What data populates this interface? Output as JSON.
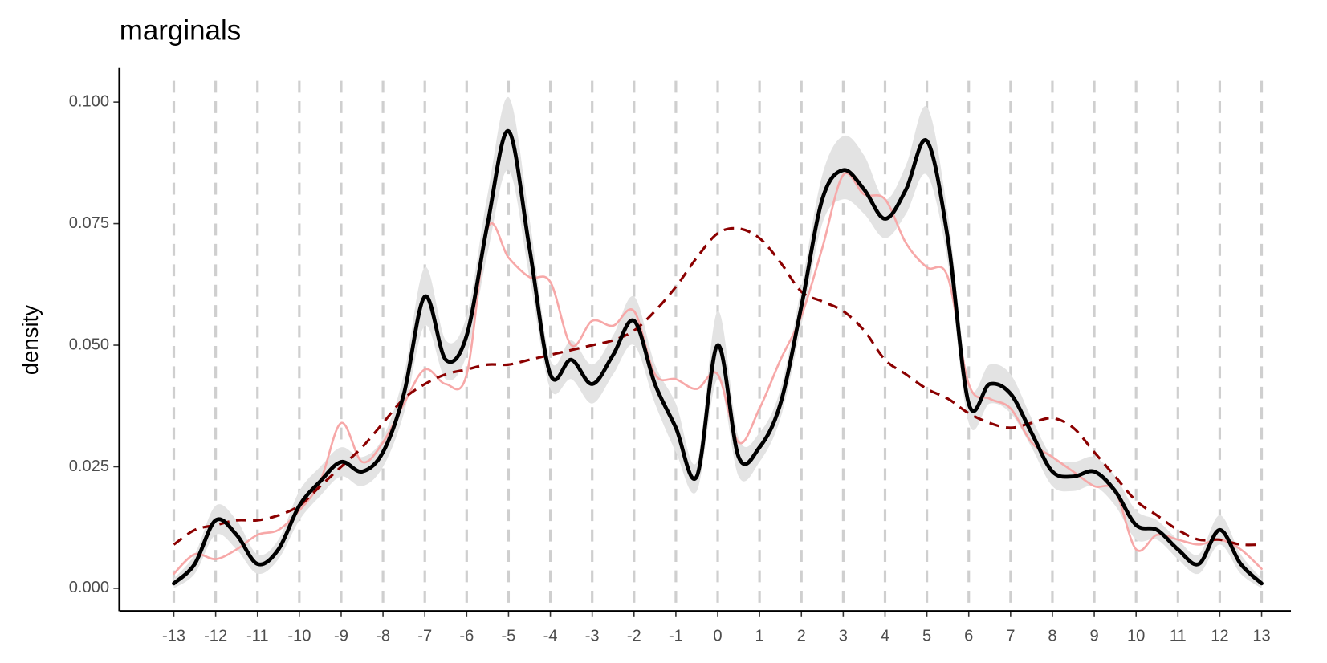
{
  "chart_data": {
    "type": "line",
    "title": "marginals",
    "y_label": "density",
    "x": [
      -13,
      -12.5,
      -12,
      -11.5,
      -11,
      -10.5,
      -10,
      -9.5,
      -9,
      -8.5,
      -8,
      -7.5,
      -7,
      -6.5,
      -6,
      -5.5,
      -5,
      -4.5,
      -4,
      -3.5,
      -3,
      -2.5,
      -2,
      -1.5,
      -1,
      -0.5,
      0,
      0.5,
      1,
      1.5,
      2,
      2.5,
      3,
      3.5,
      4,
      4.5,
      5,
      5.5,
      6,
      6.5,
      7,
      7.5,
      8,
      8.5,
      9,
      9.5,
      10,
      10.5,
      11,
      11.5,
      12,
      12.5,
      13
    ],
    "band": {
      "color": "#e3e3e3",
      "lower": [
        0.0,
        0.003,
        0.011,
        0.008,
        0.003,
        0.006,
        0.014,
        0.019,
        0.023,
        0.021,
        0.025,
        0.036,
        0.054,
        0.043,
        0.048,
        0.069,
        0.086,
        0.064,
        0.041,
        0.043,
        0.038,
        0.044,
        0.05,
        0.038,
        0.028,
        0.02,
        0.043,
        0.023,
        0.026,
        0.035,
        0.054,
        0.075,
        0.08,
        0.077,
        0.072,
        0.077,
        0.085,
        0.067,
        0.034,
        0.038,
        0.036,
        0.029,
        0.021,
        0.02,
        0.021,
        0.017,
        0.01,
        0.01,
        0.006,
        0.003,
        0.009,
        0.003,
        0.0
      ],
      "upper": [
        0.002,
        0.007,
        0.017,
        0.014,
        0.007,
        0.01,
        0.02,
        0.025,
        0.029,
        0.027,
        0.031,
        0.044,
        0.066,
        0.051,
        0.056,
        0.081,
        0.101,
        0.076,
        0.047,
        0.051,
        0.046,
        0.052,
        0.06,
        0.046,
        0.038,
        0.026,
        0.057,
        0.031,
        0.032,
        0.041,
        0.062,
        0.085,
        0.093,
        0.089,
        0.08,
        0.087,
        0.099,
        0.077,
        0.042,
        0.046,
        0.044,
        0.035,
        0.027,
        0.026,
        0.027,
        0.023,
        0.016,
        0.014,
        0.01,
        0.007,
        0.015,
        0.007,
        0.002
      ]
    },
    "series": [
      {
        "color": "#f7a8a8",
        "width": 2.5,
        "dashed": false,
        "values": [
          0.003,
          0.007,
          0.006,
          0.008,
          0.011,
          0.012,
          0.016,
          0.022,
          0.034,
          0.026,
          0.03,
          0.038,
          0.045,
          0.042,
          0.044,
          0.074,
          0.068,
          0.064,
          0.063,
          0.05,
          0.055,
          0.054,
          0.057,
          0.044,
          0.043,
          0.041,
          0.044,
          0.03,
          0.037,
          0.047,
          0.056,
          0.07,
          0.085,
          0.081,
          0.08,
          0.071,
          0.066,
          0.064,
          0.042,
          0.039,
          0.037,
          0.03,
          0.027,
          0.024,
          0.021,
          0.02,
          0.008,
          0.011,
          0.01,
          0.009,
          0.01,
          0.008,
          0.004
        ]
      },
      {
        "color": "#8b0000",
        "width": 3,
        "dashed": true,
        "values": [
          0.009,
          0.012,
          0.013,
          0.014,
          0.014,
          0.015,
          0.017,
          0.021,
          0.025,
          0.029,
          0.034,
          0.039,
          0.042,
          0.044,
          0.045,
          0.046,
          0.046,
          0.047,
          0.048,
          0.049,
          0.05,
          0.051,
          0.053,
          0.057,
          0.062,
          0.068,
          0.073,
          0.074,
          0.072,
          0.067,
          0.061,
          0.059,
          0.057,
          0.053,
          0.047,
          0.044,
          0.041,
          0.039,
          0.036,
          0.034,
          0.033,
          0.034,
          0.035,
          0.033,
          0.028,
          0.023,
          0.018,
          0.015,
          0.012,
          0.01,
          0.01,
          0.009,
          0.009
        ]
      },
      {
        "color": "#000000",
        "width": 4.5,
        "dashed": false,
        "values": [
          0.001,
          0.005,
          0.014,
          0.011,
          0.005,
          0.008,
          0.017,
          0.022,
          0.026,
          0.024,
          0.028,
          0.04,
          0.06,
          0.047,
          0.052,
          0.075,
          0.094,
          0.07,
          0.044,
          0.047,
          0.042,
          0.048,
          0.055,
          0.042,
          0.033,
          0.023,
          0.05,
          0.027,
          0.029,
          0.038,
          0.058,
          0.08,
          0.086,
          0.082,
          0.076,
          0.082,
          0.092,
          0.072,
          0.038,
          0.042,
          0.04,
          0.032,
          0.024,
          0.023,
          0.024,
          0.02,
          0.013,
          0.012,
          0.008,
          0.005,
          0.012,
          0.005,
          0.001
        ]
      }
    ],
    "xlim": [
      -14.3,
      13.7
    ],
    "ylim": [
      -0.0047,
      0.107
    ],
    "xticks": [
      -13,
      -12,
      -11,
      -10,
      -9,
      -8,
      -7,
      -6,
      -5,
      -4,
      -3,
      -2,
      -1,
      0,
      1,
      2,
      3,
      4,
      5,
      6,
      7,
      8,
      9,
      10,
      11,
      12,
      13
    ],
    "yticks": [
      {
        "value": 0,
        "label": "0.000"
      },
      {
        "value": 0.025,
        "label": "0.025"
      },
      {
        "value": 0.05,
        "label": "0.050"
      },
      {
        "value": 0.075,
        "label": "0.075"
      },
      {
        "value": 0.1,
        "label": "0.100"
      }
    ],
    "x_grid": true
  }
}
